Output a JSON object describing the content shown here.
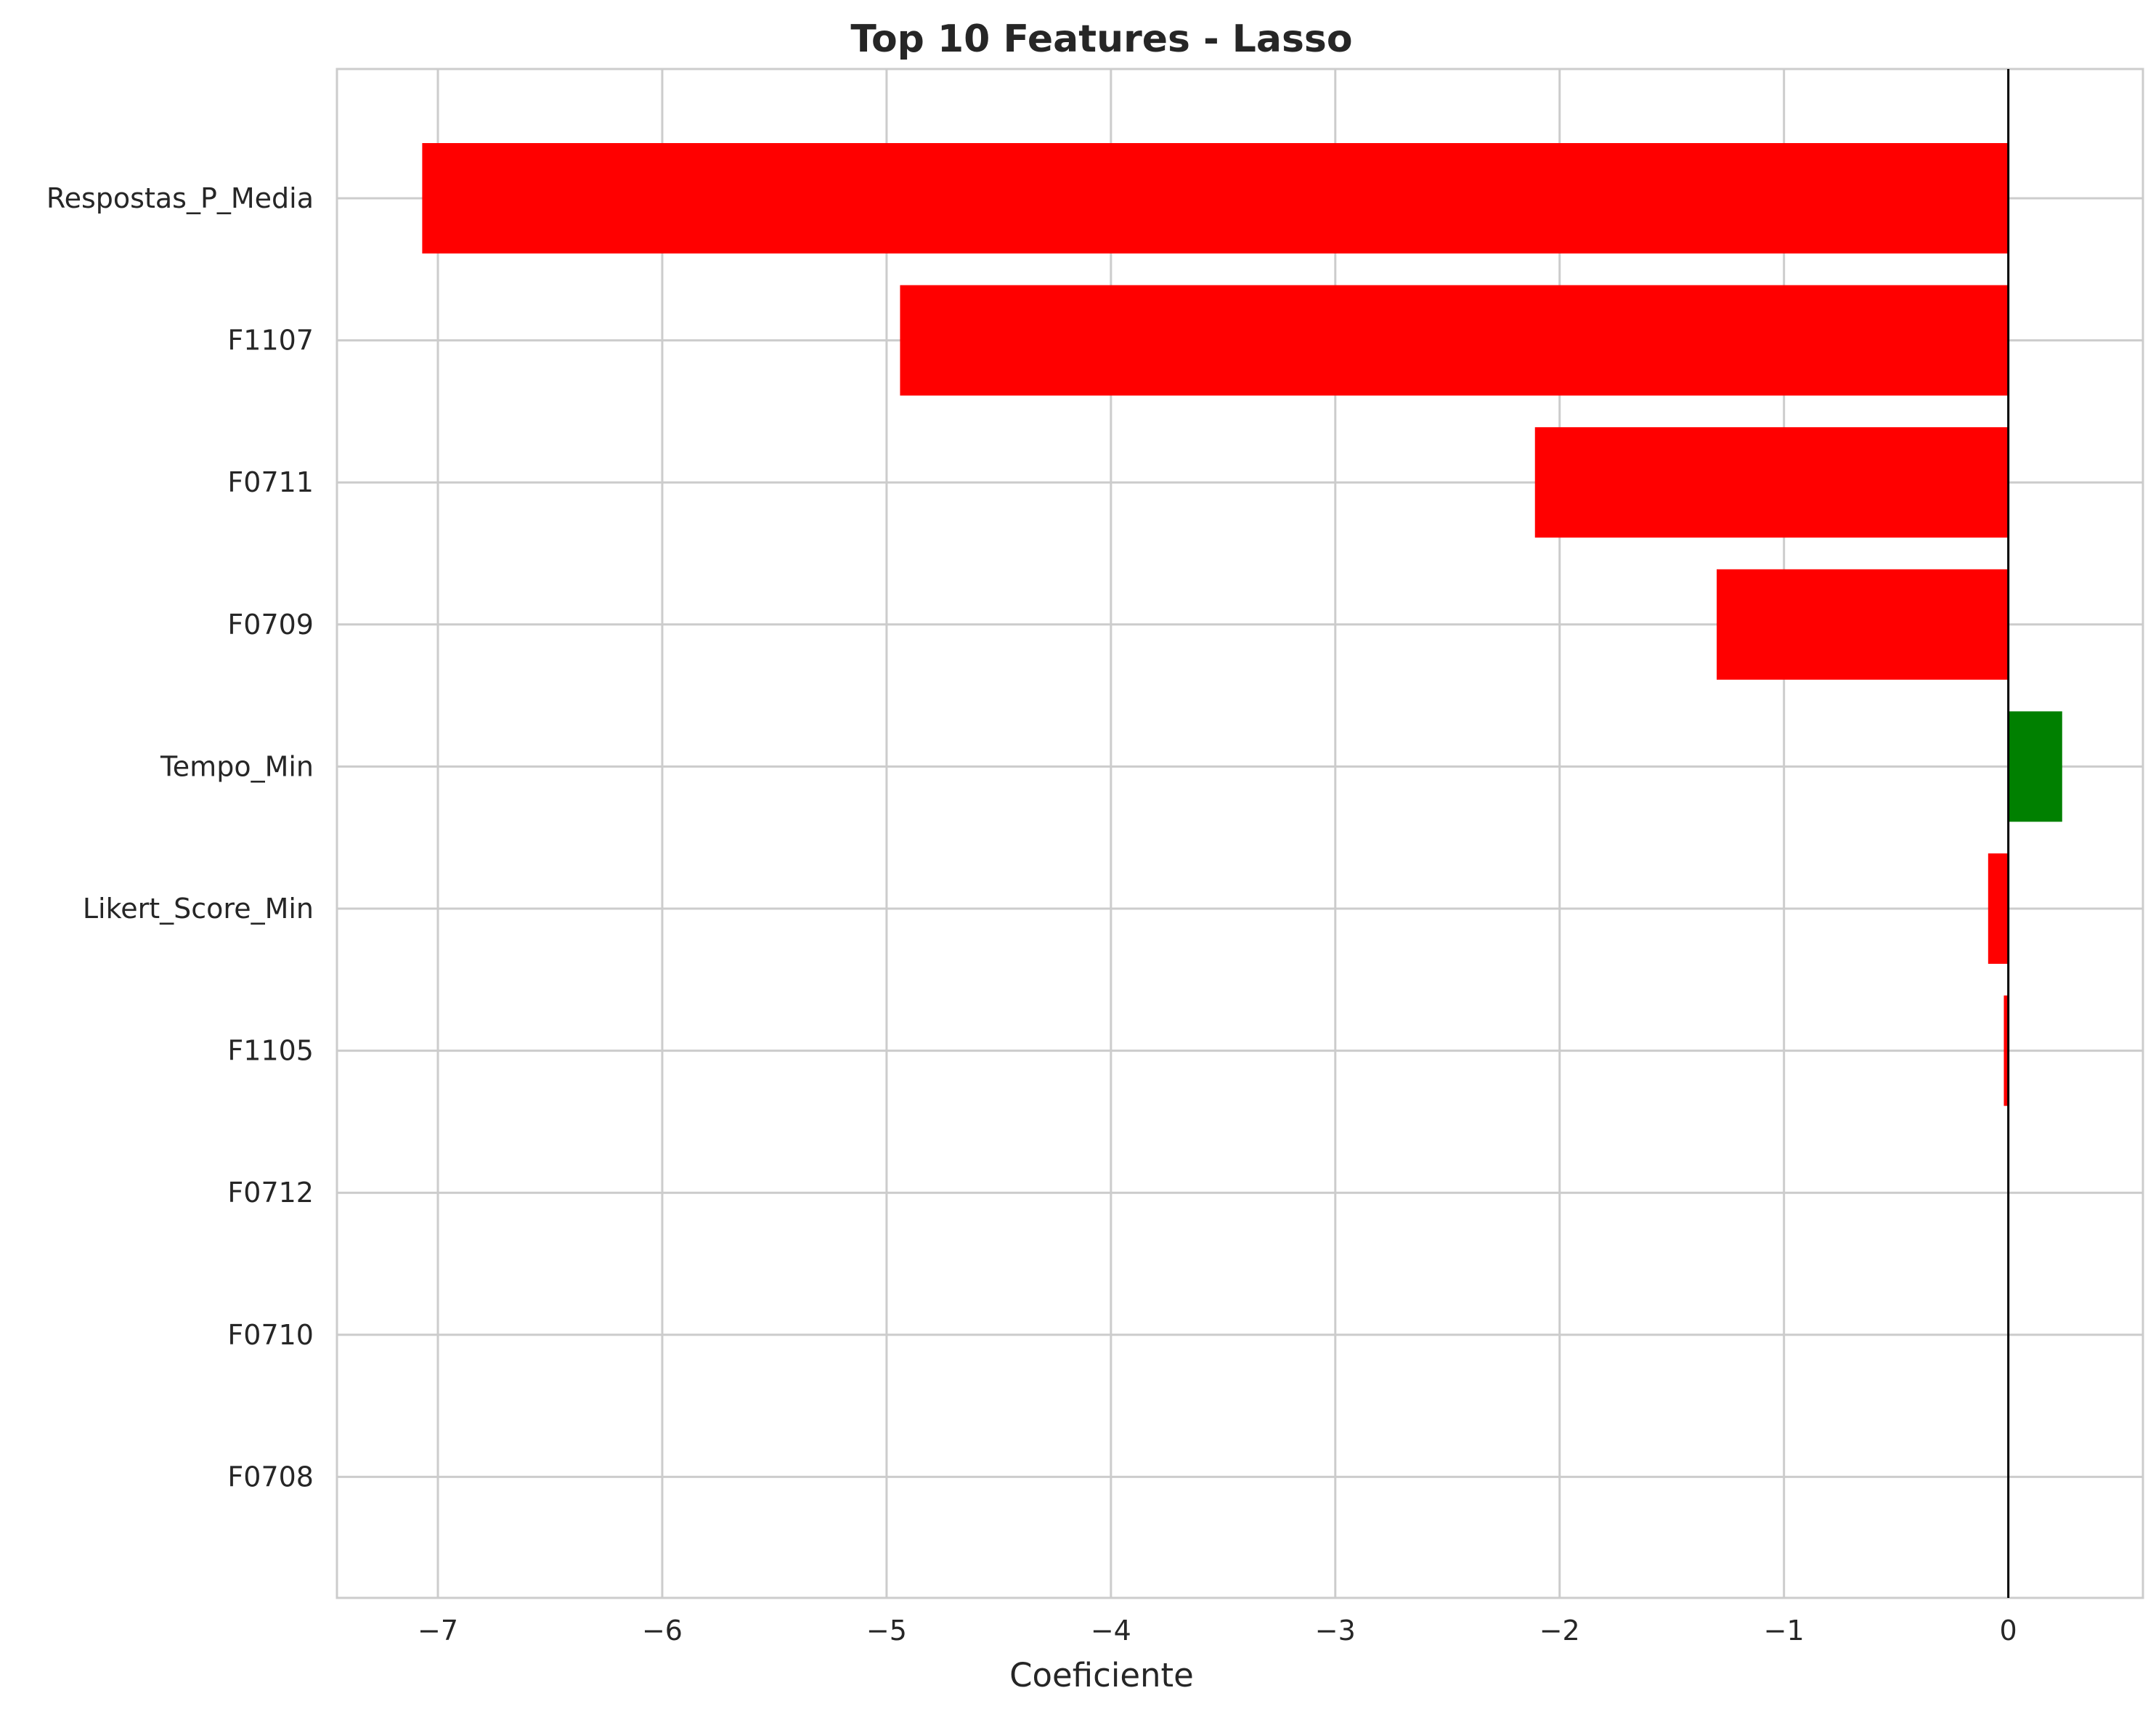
{
  "chart_data": {
    "type": "bar",
    "orientation": "horizontal",
    "title": "Top 10 Features - Lasso",
    "xlabel": "Coeficiente",
    "ylabel": "",
    "categories": [
      "Respostas_P_Media",
      "F1107",
      "F0711",
      "F0709",
      "Tempo_Min",
      "Likert_Score_Min",
      "F1105",
      "F0712",
      "F0710",
      "F0708"
    ],
    "values": [
      -7.07,
      -4.94,
      -2.11,
      -1.3,
      0.24,
      -0.09,
      -0.02,
      0,
      0,
      0
    ],
    "xlim": [
      -7.45,
      0.6
    ],
    "xticks": [
      -7,
      -6,
      -5,
      -4,
      -3,
      -2,
      -1,
      0
    ],
    "xtick_labels": [
      "−7",
      "−6",
      "−5",
      "−4",
      "−3",
      "−2",
      "−1",
      "0"
    ],
    "grid": true,
    "reference_line": 0,
    "colors": {
      "negative": "#ff0000",
      "positive": "#008000",
      "zero_line": "#000000",
      "grid": "#cccccc",
      "text": "#262626"
    }
  }
}
